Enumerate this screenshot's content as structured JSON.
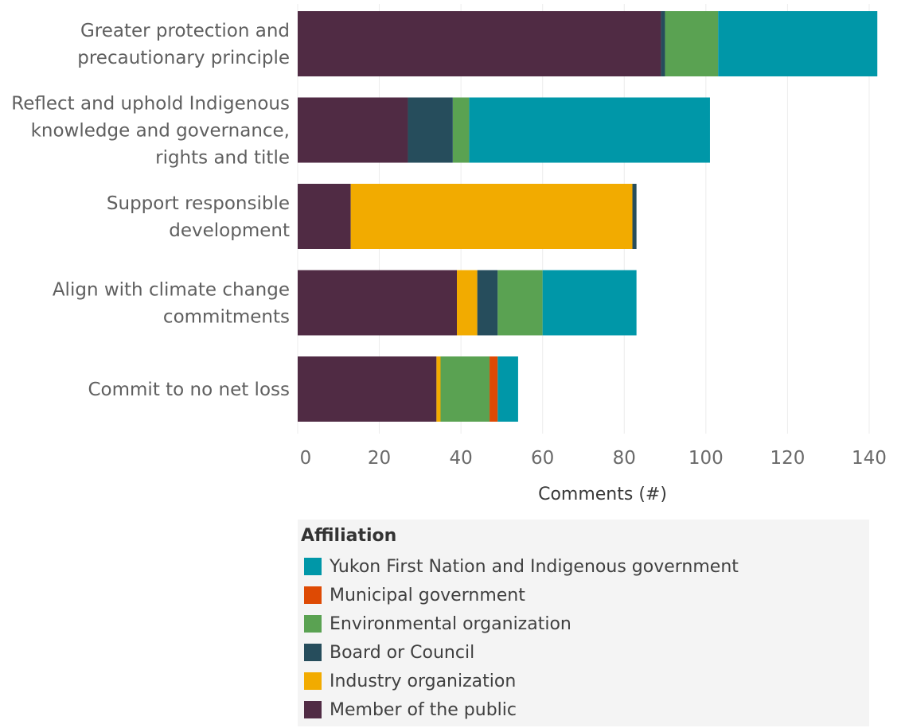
{
  "chart_data": {
    "type": "bar",
    "orientation": "horizontal",
    "stacked": true,
    "categories": [
      [
        "Greater protection and",
        "precautionary principle"
      ],
      [
        "Reflect and uphold Indigenous",
        "knowledge and governance,",
        "rights and title"
      ],
      [
        "Support responsible",
        "development"
      ],
      [
        "Align with climate change",
        "commitments"
      ],
      [
        "Commit to no net loss"
      ]
    ],
    "series": [
      {
        "name": "Member of the public",
        "color": "#502b44",
        "values": [
          89,
          27,
          13,
          39,
          34
        ]
      },
      {
        "name": "Industry organization",
        "color": "#f2ab00",
        "values": [
          0,
          0,
          69,
          5,
          1
        ]
      },
      {
        "name": "Board or Council",
        "color": "#264d5c",
        "values": [
          1,
          11,
          1,
          5,
          0
        ]
      },
      {
        "name": "Environmental organization",
        "color": "#5aa252",
        "values": [
          13,
          4,
          0,
          11,
          12
        ]
      },
      {
        "name": "Municipal government",
        "color": "#de4a04",
        "values": [
          0,
          0,
          0,
          0,
          2
        ]
      },
      {
        "name": "Yukon First Nation and Indigenous government",
        "color": "#0097a8",
        "values": [
          39,
          59,
          0,
          23,
          5
        ]
      }
    ],
    "xlabel": "Comments (#)",
    "ylabel": "",
    "xlim": [
      0,
      148
    ],
    "xticks": [
      0,
      20,
      40,
      60,
      80,
      100,
      120,
      140
    ],
    "grid": "vertical",
    "legend": {
      "title": "Affiliation",
      "placement": "bottom",
      "order": [
        "Yukon First Nation and Indigenous government",
        "Municipal government",
        "Environmental organization",
        "Board or Council",
        "Industry organization",
        "Member of the public"
      ]
    }
  }
}
